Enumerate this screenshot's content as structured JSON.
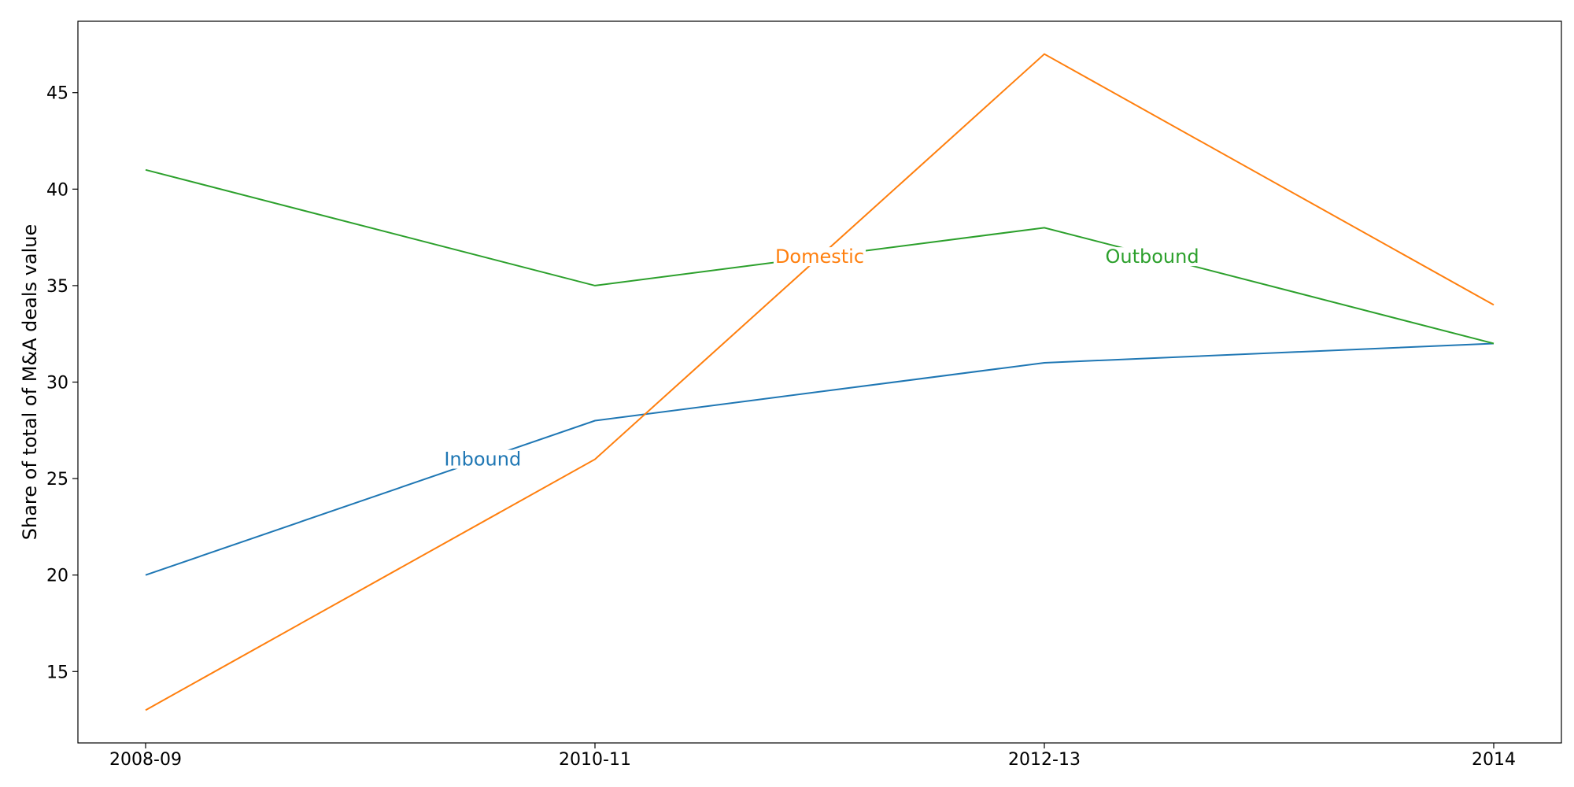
{
  "chart_data": {
    "type": "line",
    "title": "",
    "xlabel": "",
    "ylabel": "Share of total of M&A deals value",
    "categories": [
      "2008-09",
      "2010-11",
      "2012-13",
      "2014"
    ],
    "yticks": [
      15,
      20,
      25,
      30,
      35,
      40,
      45
    ],
    "ylim": [
      11.3,
      48.7
    ],
    "grid": false,
    "legend": "none",
    "series": [
      {
        "name": "Inbound",
        "color": "#1f77b4",
        "values": [
          20,
          28,
          31,
          32
        ],
        "label_at": [
          0.75,
          26.0
        ]
      },
      {
        "name": "Domestic",
        "color": "#ff7f0e",
        "values": [
          13,
          26,
          47,
          34
        ],
        "label_at": [
          1.5,
          36.5
        ]
      },
      {
        "name": "Outbound",
        "color": "#2ca02c",
        "values": [
          41,
          35,
          38,
          32
        ],
        "label_at": [
          2.24,
          36.5
        ]
      }
    ]
  }
}
